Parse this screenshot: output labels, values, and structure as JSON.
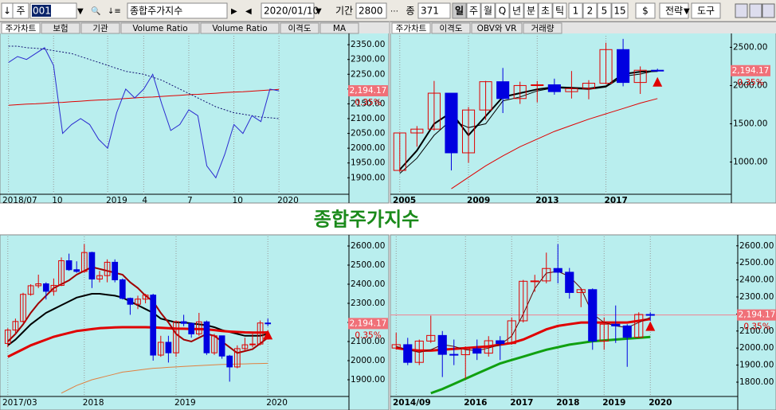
{
  "toolbar": [
    "↓",
    "주",
    "001",
    "종합주가지수",
    "2020/01/10",
    "기간",
    "2800",
    "종",
    "371",
    "일",
    "주",
    "월",
    "Q",
    "년",
    "분",
    "초",
    "틱",
    "1",
    "2",
    "5",
    "15",
    "$",
    "전략",
    "도구"
  ],
  "title": "종합주가지수",
  "chart_data": [
    {
      "type": "line",
      "tabs": [
        "주가차트",
        "보험",
        "기관",
        "Volume Ratio",
        "Volume Ratio",
        "이격도",
        "MA"
      ],
      "categories": [
        "2018/07",
        null,
        null,
        null,
        null,
        "10",
        null,
        null,
        null,
        null,
        null,
        "2019",
        null,
        null,
        null,
        "4",
        null,
        null,
        null,
        null,
        "7",
        null,
        null,
        null,
        null,
        "10",
        null,
        null,
        null,
        null,
        "2020",
        null,
        null,
        null,
        null,
        null,
        null,
        null
      ],
      "values": [
        2290,
        2310,
        2300,
        2320,
        2340,
        2280,
        2050,
        2080,
        2100,
        2080,
        2030,
        2000,
        2120,
        2200,
        2170,
        2200,
        2250,
        2150,
        2060,
        2080,
        2130,
        2110,
        1940,
        1900,
        1980,
        2080,
        2050,
        2110,
        2090,
        2200,
        2194,
        null,
        null,
        null,
        null,
        null,
        null,
        null
      ],
      "color": "#2a2ad0",
      "series": [
        {
          "color": "#e00000",
          "style": "solid",
          "values": [
            2145,
            2147,
            2149,
            2150,
            2152,
            2154,
            2155,
            2157,
            2159,
            2161,
            2163,
            2164,
            2166,
            2168,
            2170,
            2172,
            2173,
            2175,
            2177,
            2179,
            2181,
            2182,
            2184,
            2186,
            2188,
            2190,
            2191,
            2193,
            2195,
            2197,
            2199,
            null,
            null,
            null,
            null,
            null,
            null,
            null
          ]
        },
        {
          "color": "#101070",
          "style": "dotted",
          "values": [
            2345,
            2345,
            2340,
            2338,
            2335,
            2330,
            2325,
            2320,
            2310,
            2300,
            2290,
            2280,
            2270,
            2260,
            2255,
            2250,
            2240,
            2230,
            2215,
            2200,
            2185,
            2170,
            2155,
            2140,
            2130,
            2120,
            2115,
            2110,
            2105,
            2103,
            2100,
            null,
            null,
            null,
            null,
            null,
            null,
            null
          ]
        }
      ],
      "ylim": [
        1855,
        2380
      ],
      "yticks": [
        {
          "value": 2350,
          "label": "2350.00"
        },
        {
          "value": 2300,
          "label": "2300.00"
        },
        {
          "value": 2250,
          "label": "2250.00"
        },
        {
          "value": 2200,
          "label": "2200.00"
        },
        {
          "value": 2150,
          "label": "2150.00"
        },
        {
          "value": 2100,
          "label": "2100.00"
        },
        {
          "value": 2050,
          "label": "2050.00"
        },
        {
          "value": 2000,
          "label": "2000.00"
        },
        {
          "value": 1950,
          "label": "1950.00"
        },
        {
          "value": 1900,
          "label": "1900.00"
        }
      ],
      "price": {
        "value": 2194.17,
        "label": "2,194.17"
      },
      "change": "0.35%"
    },
    {
      "type": "candlestick",
      "tabs": [
        "주가차트",
        "이격도",
        "OBV와 VR",
        "거래량"
      ],
      "categories": [
        "2005",
        null,
        null,
        null,
        "2009",
        null,
        null,
        null,
        "2013",
        null,
        null,
        null,
        "2017",
        null,
        null,
        null
      ],
      "open": [
        890,
        1380,
        1430,
        1900,
        1120,
        1680,
        2050,
        1830,
        2000,
        2010,
        1920,
        1960,
        2030,
        2470,
        2040,
        2200
      ],
      "high": [
        1380,
        1470,
        2060,
        1900,
        1720,
        2060,
        2230,
        2050,
        2060,
        2090,
        2190,
        2070,
        2560,
        2610,
        2250,
        2220
      ],
      "low": [
        870,
        1200,
        1410,
        890,
        990,
        1550,
        1640,
        1760,
        1780,
        1880,
        1830,
        1820,
        2020,
        1990,
        1890,
        2180
      ],
      "close": [
        1380,
        1430,
        1900,
        1120,
        1680,
        2050,
        1830,
        2000,
        2010,
        1920,
        1960,
        2030,
        2470,
        2040,
        2200,
        2194
      ],
      "up_color": "#e00000",
      "down_color": "#0000e0",
      "series": [
        {
          "color": "#000000",
          "style": "thick",
          "values": [
            900,
            1150,
            1500,
            1650,
            1350,
            1600,
            1850,
            1900,
            1950,
            1980,
            1970,
            1960,
            1990,
            2150,
            2180,
            2190
          ]
        },
        {
          "color": "#000000",
          "style": "solid",
          "values": [
            850,
            1050,
            1350,
            1550,
            1450,
            1500,
            1800,
            1850,
            1930,
            1970,
            1960,
            1950,
            1980,
            2120,
            2150,
            2200
          ]
        },
        {
          "color": "#e00000",
          "style": "solid",
          "values": [
            null,
            null,
            null,
            650,
            800,
            950,
            1080,
            1200,
            1300,
            1400,
            1480,
            1560,
            1630,
            1700,
            1770,
            1830
          ]
        }
      ],
      "ylim": [
        620,
        2650
      ],
      "yticks": [
        {
          "value": 2500,
          "label": "2500.00"
        },
        {
          "value": 2000,
          "label": "2000.00"
        },
        {
          "value": 1500,
          "label": "1500.00"
        },
        {
          "value": 1000,
          "label": "1000.00"
        }
      ],
      "price": {
        "value": 2194.17,
        "label": "2,194.17"
      },
      "change": "0.35%"
    },
    {
      "type": "candlestick",
      "categories": [
        "2017/03",
        null,
        null,
        null,
        null,
        null,
        null,
        null,
        null,
        null,
        "2018",
        null,
        null,
        null,
        null,
        null,
        null,
        null,
        null,
        null,
        null,
        null,
        "2019",
        null,
        null,
        null,
        null,
        null,
        null,
        null,
        null,
        null,
        null,
        null,
        "2020"
      ],
      "open": [
        2090,
        2160,
        2205,
        2347,
        2392,
        2402,
        2363,
        2394,
        2523,
        2476,
        2467,
        2566,
        2427,
        2445,
        2515,
        2423,
        2326,
        2295,
        2322,
        2343,
        2029,
        2096,
        2041,
        2204,
        2195,
        2140,
        2203,
        2041,
        2130,
        2024,
        1967,
        2063,
        2083,
        2087,
        2197
      ],
      "high": [
        2170,
        2220,
        2355,
        2400,
        2450,
        2410,
        2430,
        2540,
        2560,
        2520,
        2610,
        2570,
        2470,
        2530,
        2530,
        2430,
        2330,
        2340,
        2350,
        2350,
        2130,
        2130,
        2210,
        2240,
        2200,
        2250,
        2210,
        2140,
        2130,
        2030,
        2080,
        2120,
        2140,
        2210,
        2220
      ],
      "low": [
        2070,
        2140,
        2200,
        2340,
        2380,
        2320,
        2340,
        2390,
        2470,
        2460,
        2460,
        2380,
        2410,
        2410,
        2410,
        2320,
        2240,
        2270,
        2300,
        2000,
        2020,
        1990,
        2020,
        2180,
        2120,
        2130,
        2030,
        2030,
        2010,
        1890,
        1960,
        2050,
        2070,
        2080,
        2180
      ],
      "close": [
        2160,
        2205,
        2347,
        2392,
        2402,
        2363,
        2394,
        2523,
        2476,
        2467,
        2566,
        2427,
        2445,
        2515,
        2423,
        2326,
        2295,
        2322,
        2343,
        2029,
        2096,
        2041,
        2204,
        2195,
        2140,
        2203,
        2041,
        2130,
        2024,
        1967,
        2063,
        2083,
        2087,
        2197,
        2194
      ],
      "up_color": "#e00000",
      "down_color": "#0000e0",
      "series": [
        {
          "color": "#000000",
          "style": "thick",
          "values": [
            2080,
            2110,
            2150,
            2190,
            2220,
            2250,
            2270,
            2290,
            2310,
            2330,
            2340,
            2350,
            2350,
            2345,
            2340,
            2330,
            2310,
            2290,
            2270,
            2250,
            2220,
            2210,
            2200,
            2200,
            2195,
            2190,
            2185,
            2175,
            2160,
            2150,
            2140,
            2130,
            2130,
            2130,
            2140
          ]
        },
        {
          "color": "#e00000",
          "style": "heavy",
          "values": [
            2020,
            2040,
            2060,
            2080,
            2095,
            2110,
            2125,
            2135,
            2145,
            2155,
            2160,
            2165,
            2170,
            2172,
            2174,
            2175,
            2175,
            2175,
            2175,
            2174,
            2172,
            2170,
            2168,
            2167,
            2166,
            2165,
            2164,
            2160,
            2155,
            2152,
            2150,
            2148,
            2147,
            2147,
            2148
          ]
        },
        {
          "color": "#e08040",
          "style": "solid",
          "values": [
            null,
            null,
            null,
            null,
            null,
            null,
            null,
            1830,
            1850,
            1870,
            1885,
            1900,
            1910,
            1920,
            1930,
            1940,
            1945,
            1950,
            1955,
            1960,
            1962,
            1965,
            1967,
            1970,
            1972,
            1974,
            1976,
            1978,
            1980,
            1981,
            1982,
            1983,
            1984,
            1985,
            1986
          ]
        },
        {
          "color": "#a00000",
          "style": "thick",
          "values": [
            2100,
            2140,
            2190,
            2250,
            2300,
            2340,
            2380,
            2400,
            2420,
            2450,
            2470,
            2490,
            2480,
            2470,
            2460,
            2450,
            2410,
            2380,
            2340,
            2310,
            2250,
            2200,
            2140,
            2110,
            2100,
            2120,
            2140,
            2130,
            2100,
            2070,
            2040,
            2050,
            2060,
            2090,
            2120
          ]
        }
      ],
      "ylim": [
        1825,
        2650
      ],
      "yticks": [
        {
          "value": 2600,
          "label": "2600.00"
        },
        {
          "value": 2500,
          "label": "2500.00"
        },
        {
          "value": 2400,
          "label": "2400.00"
        },
        {
          "value": 2300,
          "label": "2300.00"
        },
        {
          "value": 2200,
          "label": "2200.00"
        },
        {
          "value": 2100,
          "label": "2100.00"
        },
        {
          "value": 2000,
          "label": "2000.00"
        },
        {
          "value": 1900,
          "label": "1900.00"
        }
      ],
      "price": {
        "value": 2194.17,
        "label": "2,194.17"
      },
      "change": "0.35%"
    },
    {
      "type": "candlestick",
      "categories": [
        "2014/09",
        null,
        null,
        null,
        null,
        null,
        "2016",
        null,
        null,
        null,
        "2017",
        null,
        null,
        null,
        "2018",
        null,
        null,
        null,
        "2019",
        null,
        null,
        null,
        "2020"
      ],
      "open": [
        2000,
        2020,
        1916,
        2041,
        2074,
        1963,
        1961,
        1996,
        1970,
        2043,
        2026,
        2160,
        2392,
        2394,
        2467,
        2445,
        2326,
        2343,
        2041,
        2140,
        2130,
        2063,
        2197
      ],
      "high": [
        2090,
        2060,
        2050,
        2190,
        2100,
        2050,
        2010,
        2050,
        2070,
        2070,
        2180,
        2400,
        2430,
        2560,
        2610,
        2470,
        2350,
        2350,
        2180,
        2250,
        2140,
        2210,
        2210
      ],
      "low": [
        1990,
        1900,
        1900,
        2030,
        1830,
        1900,
        1820,
        1930,
        1950,
        1930,
        2020,
        2150,
        2330,
        2380,
        2380,
        2290,
        2240,
        1990,
        1990,
        2030,
        1890,
        2060,
        2160
      ],
      "close": [
        2020,
        1916,
        2041,
        2074,
        1963,
        1961,
        1996,
        1970,
        2043,
        2026,
        2160,
        2392,
        2394,
        2467,
        2445,
        2326,
        2343,
        2041,
        2140,
        2130,
        2063,
        2197,
        2194
      ],
      "up_color": "#e00000",
      "down_color": "#0000e0",
      "series": [
        {
          "color": "#e00000",
          "style": "heavy",
          "values": [
            2000,
            1990,
            1985,
            1985,
            1990,
            1995,
            2000,
            2005,
            2010,
            2020,
            2030,
            2050,
            2080,
            2110,
            2130,
            2140,
            2150,
            2150,
            2150,
            2150,
            2150,
            2160,
            2170
          ]
        },
        {
          "color": "#600000",
          "style": "solid",
          "values": [
            2010,
            1990,
            1975,
            1990,
            2020,
            2010,
            1990,
            1985,
            2000,
            2020,
            2070,
            2200,
            2350,
            2440,
            2450,
            2420,
            2350,
            2200,
            2150,
            2130,
            2120,
            2150,
            2180
          ]
        },
        {
          "color": "#10a010",
          "style": "heavy",
          "values": [
            null,
            null,
            null,
            1735,
            1760,
            1790,
            1820,
            1850,
            1880,
            1910,
            1930,
            1950,
            1970,
            1990,
            2005,
            2020,
            2030,
            2040,
            2045,
            2050,
            2055,
            2060,
            2065
          ]
        }
      ],
      "ylim": [
        1730,
        2655
      ],
      "yticks": [
        {
          "value": 2600,
          "label": "2600.00"
        },
        {
          "value": 2500,
          "label": "2500.00"
        },
        {
          "value": 2400,
          "label": "2400.00"
        },
        {
          "value": 2300,
          "label": "2300.00"
        },
        {
          "value": 2200,
          "label": "2200.00"
        },
        {
          "value": 2100,
          "label": "2100.00"
        },
        {
          "value": 2000,
          "label": "2000.00"
        },
        {
          "value": 1900,
          "label": "1900.00"
        },
        {
          "value": 1800,
          "label": "1800.00"
        }
      ],
      "price": {
        "value": 2194.17,
        "label": "2,194.17"
      },
      "change": "0.35%",
      "price_line": true
    }
  ]
}
